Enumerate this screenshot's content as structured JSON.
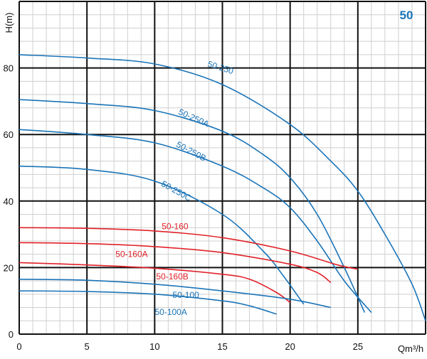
{
  "chart_data": {
    "type": "line",
    "badge": "50",
    "xlabel": "Qm³/h",
    "ylabel": "H(m)",
    "xlim": [
      0,
      30
    ],
    "ylim": [
      0,
      100
    ],
    "x_ticks": [
      0,
      5,
      10,
      15,
      20,
      25
    ],
    "y_ticks": [
      0,
      20,
      40,
      60,
      80
    ],
    "grid": true,
    "colors": {
      "blue": "#1a74b8",
      "red": "#e02128",
      "grid": "#111111",
      "minor_grid": "#cfcfcf",
      "badge": "#1a74b8"
    },
    "series": [
      {
        "name": "50-250",
        "color": "blue",
        "points": [
          [
            0,
            84
          ],
          [
            5,
            83
          ],
          [
            10,
            81.2
          ],
          [
            15,
            75
          ],
          [
            20,
            63
          ],
          [
            23,
            52
          ],
          [
            25,
            43
          ],
          [
            27,
            30
          ],
          [
            29,
            15
          ],
          [
            30,
            4
          ]
        ]
      },
      {
        "name": "50-250A",
        "color": "blue",
        "points": [
          [
            0,
            70.5
          ],
          [
            5,
            69.3
          ],
          [
            10,
            67.2
          ],
          [
            15,
            61
          ],
          [
            18,
            54
          ],
          [
            20,
            47
          ],
          [
            22,
            36
          ],
          [
            24,
            20
          ],
          [
            25.5,
            6.5
          ]
        ]
      },
      {
        "name": "50-250B",
        "color": "blue",
        "points": [
          [
            0,
            61.5
          ],
          [
            5,
            60
          ],
          [
            10,
            57.5
          ],
          [
            15,
            50.5
          ],
          [
            18,
            44
          ],
          [
            20,
            38
          ],
          [
            22,
            28
          ],
          [
            24,
            16
          ],
          [
            26,
            6.5
          ]
        ]
      },
      {
        "name": "50-250C",
        "color": "blue",
        "points": [
          [
            0,
            50.5
          ],
          [
            5,
            49.5
          ],
          [
            10,
            46
          ],
          [
            15,
            36
          ],
          [
            18,
            25
          ],
          [
            19.5,
            17.5
          ],
          [
            21,
            9
          ]
        ]
      },
      {
        "name": "50-160",
        "color": "red",
        "points": [
          [
            0,
            32
          ],
          [
            5,
            31.8
          ],
          [
            10,
            31
          ],
          [
            15,
            29
          ],
          [
            20,
            25
          ],
          [
            23.5,
            20.8
          ],
          [
            25,
            19.5
          ]
        ]
      },
      {
        "name": "50-160A",
        "color": "red",
        "points": [
          [
            0,
            27.5
          ],
          [
            5,
            27.2
          ],
          [
            10,
            26.3
          ],
          [
            15,
            24.5
          ],
          [
            20,
            21
          ],
          [
            22,
            18.5
          ],
          [
            23,
            15.5
          ]
        ]
      },
      {
        "name": "50-160B",
        "color": "red",
        "points": [
          [
            0,
            21.5
          ],
          [
            5,
            20.8
          ],
          [
            10,
            19.8
          ],
          [
            15,
            18
          ],
          [
            17,
            16.5
          ],
          [
            19,
            12.5
          ],
          [
            20,
            9.5
          ]
        ]
      },
      {
        "name": "50-100",
        "color": "blue",
        "points": [
          [
            0,
            16.5
          ],
          [
            5,
            16.2
          ],
          [
            10,
            15
          ],
          [
            15,
            13
          ],
          [
            20,
            10.5
          ],
          [
            23,
            8
          ]
        ]
      },
      {
        "name": "50-100A",
        "color": "blue",
        "points": [
          [
            0,
            13
          ],
          [
            5,
            12.8
          ],
          [
            10,
            12
          ],
          [
            15,
            10
          ],
          [
            17,
            8.5
          ],
          [
            19,
            6
          ]
        ]
      }
    ],
    "labels": [
      {
        "text": "50-250",
        "color": "blue",
        "x": 14.8,
        "y": 79.3,
        "rotate": 17
      },
      {
        "text": "50-250A",
        "color": "blue",
        "x": 12.8,
        "y": 64.2,
        "rotate": 24
      },
      {
        "text": "50-250B",
        "color": "blue",
        "x": 12.6,
        "y": 54.2,
        "rotate": 28
      },
      {
        "text": "50-250C",
        "color": "blue",
        "x": 11.5,
        "y": 42.3,
        "rotate": 29
      },
      {
        "text": "50-160",
        "color": "red",
        "x": 11.5,
        "y": 31.5,
        "rotate": 0
      },
      {
        "text": "50-160A",
        "color": "red",
        "x": 8.3,
        "y": 23.2,
        "rotate": 0
      },
      {
        "text": "50-160B",
        "color": "red",
        "x": 11.3,
        "y": 16.5,
        "rotate": 0
      },
      {
        "text": "50-100",
        "color": "blue",
        "x": 12.3,
        "y": 10.9,
        "rotate": 0
      },
      {
        "text": "50-100A",
        "color": "blue",
        "x": 11.2,
        "y": 5.8,
        "rotate": 0
      }
    ]
  }
}
